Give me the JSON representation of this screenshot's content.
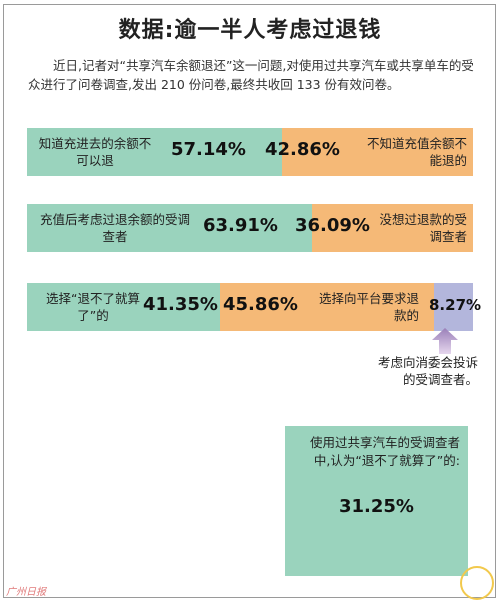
{
  "title": "数据:逾一半人考虑过退钱",
  "intro": "近日,记者对“共享汽车余额退还”这一问题,对使用过共享汽车或共享单车的受众进行了问卷调查,发出 210 份问卷,最终共收回 133 份有效问卷。",
  "colors": {
    "green": "#9ad3bd",
    "orange": "#f5b977",
    "purple": "#b3b6dc"
  },
  "chart_data": {
    "type": "bar",
    "orientation": "horizontal-stacked-100",
    "title": "数据:逾一半人考虑过退钱",
    "rows": [
      {
        "segments": [
          {
            "label": "知道充进去的余额不可以退",
            "value": 57.14,
            "value_label": "57.14%",
            "color": "#9ad3bd"
          },
          {
            "label": "不知道充值余额不能退的",
            "value": 42.86,
            "value_label": "42.86%",
            "color": "#f5b977"
          }
        ]
      },
      {
        "segments": [
          {
            "label": "充值后考虑过退余额的受调查者",
            "value": 63.91,
            "value_label": "63.91%",
            "color": "#9ad3bd"
          },
          {
            "label": "没想过退款的受调查者",
            "value": 36.09,
            "value_label": "36.09%",
            "color": "#f5b977"
          }
        ]
      },
      {
        "segments": [
          {
            "label": "选择“退不了就算了”的",
            "value": 41.35,
            "value_label": "41.35%",
            "color": "#9ad3bd"
          },
          {
            "label": "选择向平台要求退款的",
            "value": 45.86,
            "value_label": "45.86%",
            "color": "#f5b977"
          },
          {
            "label": "考虑向消委会投诉的受调查者。",
            "value": 8.27,
            "value_label": "8.27%",
            "color": "#b3b6dc"
          }
        ]
      }
    ],
    "note": {
      "text": "使用过共享汽车的受调查者中,认为“退不了就算了”的:",
      "value": 31.25,
      "value_label": "31.25%"
    }
  },
  "watermark": "广州日报"
}
